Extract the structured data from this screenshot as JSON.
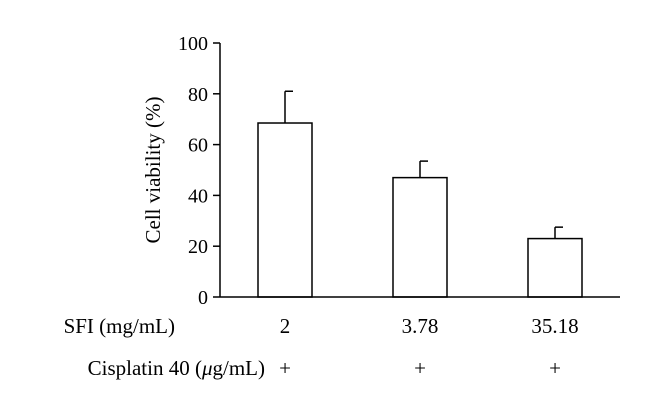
{
  "chart_data": {
    "type": "bar",
    "title": "",
    "xlabel": "",
    "ylabel": "Cell viability (%)",
    "ylim": [
      0,
      100
    ],
    "yticks": [
      0,
      20,
      40,
      60,
      80,
      100
    ],
    "grid": false,
    "legend": "none",
    "categories": [
      "2",
      "3.78",
      "35.18"
    ],
    "values": [
      68.5,
      47.0,
      23.0
    ],
    "error_bars": [
      12.5,
      6.5,
      4.5
    ],
    "bar_fill": "#ffffff",
    "bar_stroke": "#000000",
    "conditions": [
      {
        "label": "SFI (mg/mL)",
        "values": [
          "2",
          "3.78",
          "35.18"
        ]
      },
      {
        "label_prefix": "Cisplatin 40 (",
        "label_mu": "μ",
        "label_suffix": "g/mL)",
        "values": [
          "+",
          "+",
          "+"
        ]
      }
    ]
  }
}
